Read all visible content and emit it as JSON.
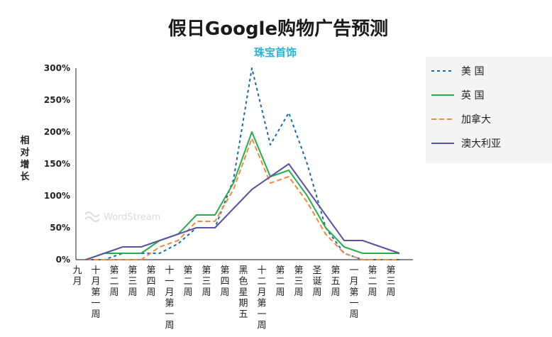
{
  "chart_data": {
    "type": "line",
    "title": "假日Google购物广告预测",
    "subtitle": "珠宝首饰",
    "ylabel": "相对增长",
    "xlabel": "",
    "ylim": [
      0,
      300
    ],
    "yticks": [
      "0%",
      "50%",
      "100%",
      "150%",
      "200%",
      "250%",
      "300%"
    ],
    "ytick_values": [
      0,
      50,
      100,
      150,
      200,
      250,
      300
    ],
    "grid": "none",
    "legend_position": "right",
    "watermark": "WordStream",
    "categories": [
      "九月",
      "十月第一周",
      "第二周",
      "第三周",
      "第四周",
      "十一月第一周",
      "第二周",
      "第三周",
      "第四周",
      "黑色星期五",
      "十二月第一周",
      "第二周",
      "第三周",
      "圣诞周",
      "第五周",
      "一月第一周",
      "第二周",
      "第三周"
    ],
    "series": [
      {
        "name": "美 国",
        "color": "#1a6aa8",
        "style": "dotted",
        "values": [
          0,
          0,
          10,
          10,
          10,
          25,
          50,
          50,
          125,
          300,
          180,
          230,
          150,
          50,
          10,
          0,
          0,
          0
        ]
      },
      {
        "name": "英 国",
        "color": "#27ae4f",
        "style": "solid",
        "values": [
          0,
          10,
          10,
          10,
          30,
          40,
          70,
          70,
          120,
          200,
          130,
          140,
          100,
          50,
          20,
          10,
          10,
          10
        ]
      },
      {
        "name": "加拿大",
        "color": "#f28a3c",
        "style": "dashed",
        "values": [
          0,
          0,
          0,
          0,
          20,
          30,
          60,
          60,
          110,
          190,
          120,
          130,
          90,
          40,
          10,
          0,
          0,
          0
        ]
      },
      {
        "name": "澳大利亚",
        "color": "#5b52a0",
        "style": "solid",
        "values": [
          0,
          10,
          20,
          20,
          30,
          40,
          50,
          50,
          80,
          110,
          130,
          150,
          110,
          70,
          30,
          30,
          20,
          10
        ]
      }
    ]
  }
}
